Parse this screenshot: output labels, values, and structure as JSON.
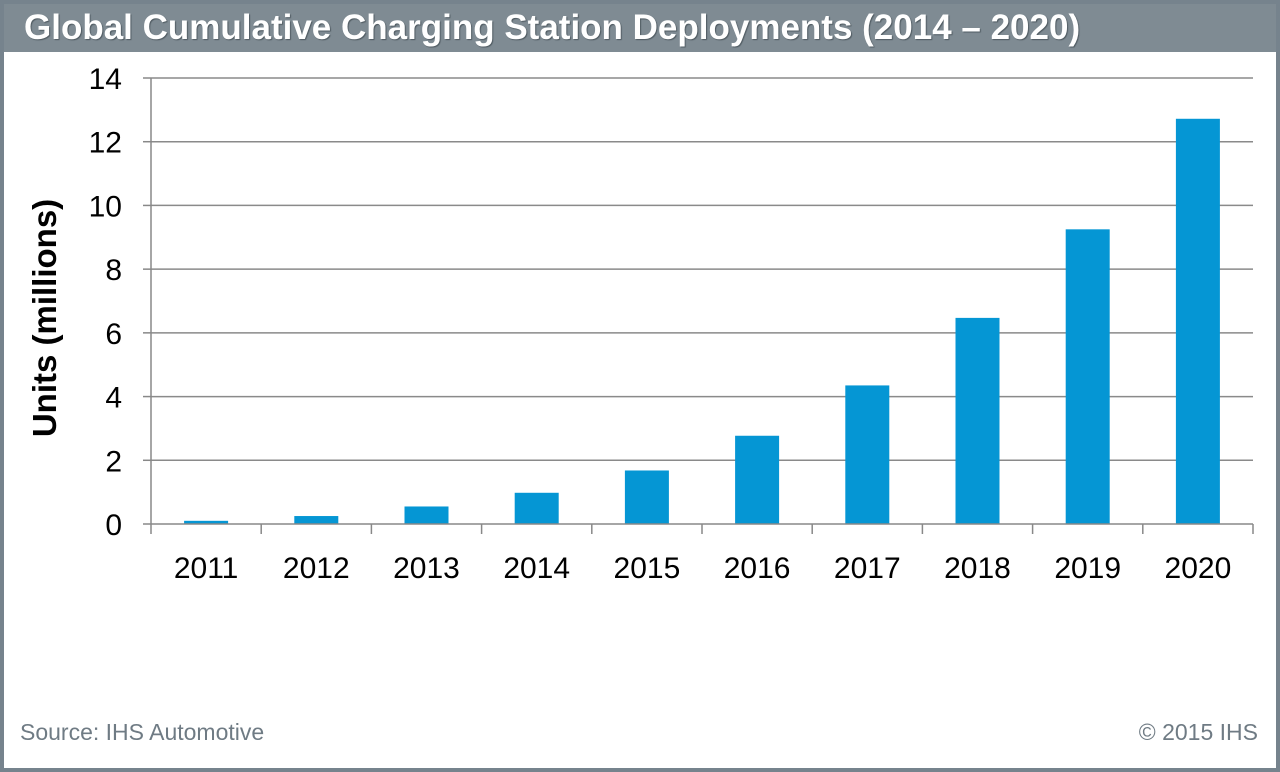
{
  "header": {
    "title": "Global Cumulative Charging Station Deployments (2014 – 2020)"
  },
  "footer": {
    "source": "Source: IHS Automotive",
    "copyright": "© 2015 IHS"
  },
  "colors": {
    "bar": "#0596d4",
    "grid": "#8a8a8a",
    "axis": "#888888"
  },
  "chart_data": {
    "type": "bar",
    "title": "Global Cumulative Charging Station Deployments (2014 – 2020)",
    "xlabel": "",
    "ylabel": "Units (millions)",
    "categories": [
      "2011",
      "2012",
      "2013",
      "2014",
      "2015",
      "2016",
      "2017",
      "2018",
      "2019",
      "2020"
    ],
    "values": [
      0.1,
      0.25,
      0.55,
      0.98,
      1.68,
      2.77,
      4.35,
      6.47,
      9.25,
      12.72
    ],
    "ylim": [
      0,
      14
    ],
    "yticks": [
      "0",
      "2",
      "4",
      "6",
      "8",
      "10",
      "12",
      "14"
    ],
    "grid": true,
    "legend": "none"
  }
}
